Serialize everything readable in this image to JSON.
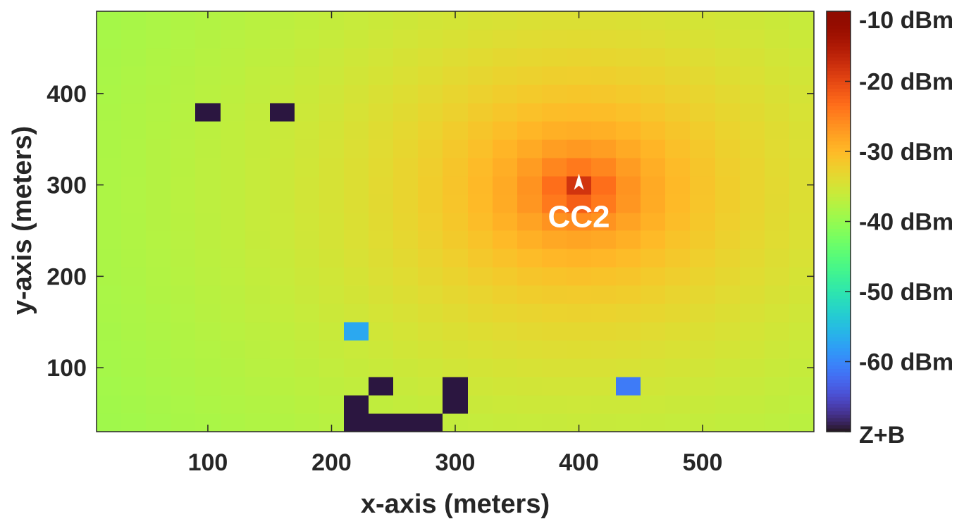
{
  "chart_data": {
    "type": "heatmap",
    "title": "",
    "xlabel": "x-axis (meters)",
    "ylabel": "y-axis (meters)",
    "xlim": [
      10,
      590
    ],
    "ylim": [
      30,
      490
    ],
    "xticks": [
      100,
      200,
      300,
      400,
      500
    ],
    "yticks": [
      100,
      200,
      300,
      400
    ],
    "cell_size": 20,
    "colorbar": {
      "label_positions": "right",
      "ticks": [
        {
          "value": -10,
          "label": "-10 dBm"
        },
        {
          "value": -20,
          "label": "-20 dBm"
        },
        {
          "value": -30,
          "label": "-30 dBm"
        },
        {
          "value": -40,
          "label": "-40 dBm"
        },
        {
          "value": -50,
          "label": "-50 dBm"
        },
        {
          "value": -60,
          "label": "-60 dBm"
        },
        {
          "value": -70,
          "label": "Z+B"
        }
      ],
      "range": [
        -70,
        -10
      ]
    },
    "source": {
      "label": "CC2",
      "x": 400,
      "y": 300,
      "icon": "arrowhead-marker-icon"
    },
    "field_model": {
      "center": [
        400,
        295
      ],
      "peak_dbm": -15,
      "edge_dbm": -50
    },
    "zero_blocked_cells": [
      [
        100,
        380
      ],
      [
        160,
        380
      ],
      [
        240,
        80
      ],
      [
        300,
        80
      ],
      [
        300,
        60
      ],
      [
        220,
        60
      ],
      [
        220,
        40
      ],
      [
        240,
        40
      ],
      [
        260,
        40
      ],
      [
        280,
        40
      ]
    ],
    "weak_cells": [
      {
        "x": 220,
        "y": 140,
        "dbm": -57
      },
      {
        "x": 440,
        "y": 80,
        "dbm": -61
      }
    ]
  }
}
